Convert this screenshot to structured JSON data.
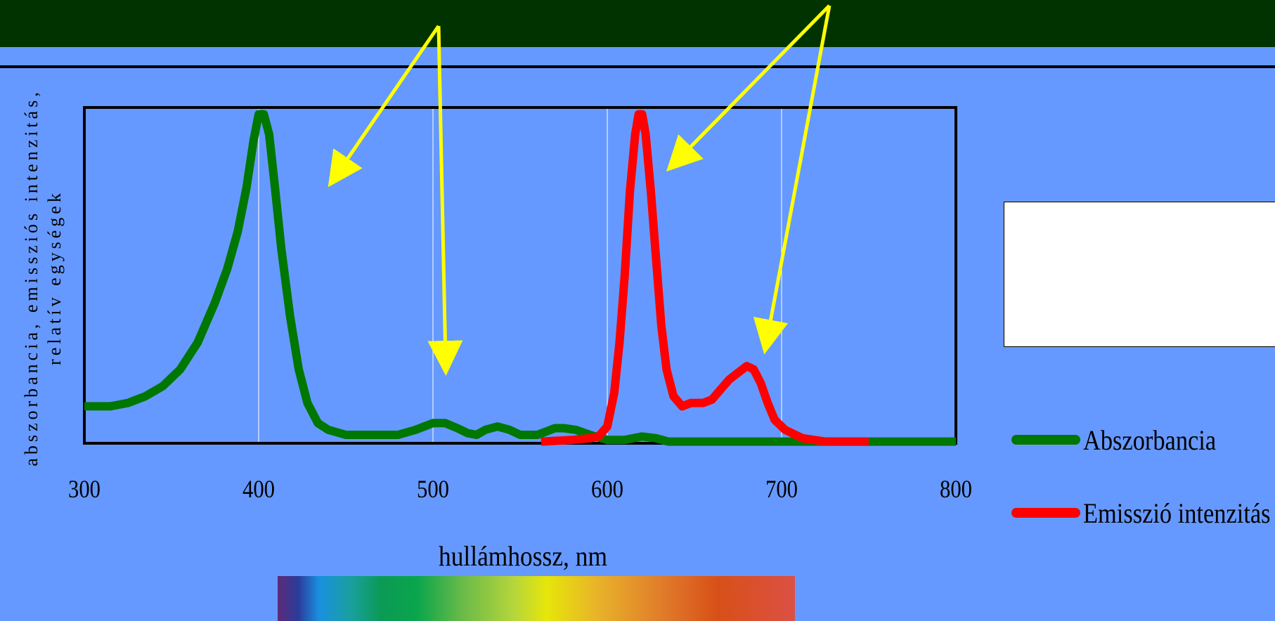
{
  "chart_data": {
    "type": "line",
    "title": "",
    "xlabel": "hullámhossz, nm",
    "ylabel_lines": [
      "abszorbancia, emissziós intenzitás,",
      "relatív egységek"
    ],
    "xlim": [
      300,
      800
    ],
    "ylim": [
      0,
      1
    ],
    "xticks": [
      "300",
      "400",
      "500",
      "600",
      "700",
      "800"
    ],
    "grid": "vertical",
    "legend_position": "right",
    "series": [
      {
        "name": "Abszorbancia",
        "color": "#007700",
        "points": [
          [
            300,
            0.11
          ],
          [
            315,
            0.11
          ],
          [
            325,
            0.12
          ],
          [
            335,
            0.14
          ],
          [
            345,
            0.17
          ],
          [
            355,
            0.22
          ],
          [
            365,
            0.3
          ],
          [
            375,
            0.42
          ],
          [
            382,
            0.52
          ],
          [
            388,
            0.63
          ],
          [
            393,
            0.76
          ],
          [
            397,
            0.9
          ],
          [
            400,
            0.98
          ],
          [
            403,
            0.98
          ],
          [
            406,
            0.92
          ],
          [
            409,
            0.78
          ],
          [
            413,
            0.58
          ],
          [
            418,
            0.38
          ],
          [
            423,
            0.22
          ],
          [
            428,
            0.12
          ],
          [
            434,
            0.06
          ],
          [
            440,
            0.04
          ],
          [
            450,
            0.025
          ],
          [
            460,
            0.025
          ],
          [
            480,
            0.025
          ],
          [
            490,
            0.04
          ],
          [
            500,
            0.06
          ],
          [
            507,
            0.06
          ],
          [
            514,
            0.045
          ],
          [
            520,
            0.03
          ],
          [
            525,
            0.025
          ],
          [
            530,
            0.04
          ],
          [
            537,
            0.05
          ],
          [
            544,
            0.04
          ],
          [
            550,
            0.025
          ],
          [
            560,
            0.025
          ],
          [
            570,
            0.045
          ],
          [
            575,
            0.045
          ],
          [
            582,
            0.04
          ],
          [
            590,
            0.025
          ],
          [
            600,
            0.01
          ],
          [
            610,
            0.01
          ],
          [
            620,
            0.02
          ],
          [
            628,
            0.015
          ],
          [
            635,
            0.005
          ],
          [
            650,
            0.005
          ],
          [
            700,
            0.005
          ],
          [
            800,
            0.005
          ]
        ]
      },
      {
        "name": "Emisszió intenzitás",
        "color": "#ff0000",
        "points": [
          [
            562,
            0.005
          ],
          [
            580,
            0.01
          ],
          [
            590,
            0.015
          ],
          [
            595,
            0.02
          ],
          [
            600,
            0.05
          ],
          [
            604,
            0.15
          ],
          [
            607,
            0.3
          ],
          [
            610,
            0.5
          ],
          [
            613,
            0.75
          ],
          [
            616,
            0.92
          ],
          [
            618,
            0.98
          ],
          [
            620,
            0.98
          ],
          [
            622,
            0.92
          ],
          [
            625,
            0.75
          ],
          [
            628,
            0.55
          ],
          [
            631,
            0.35
          ],
          [
            634,
            0.22
          ],
          [
            638,
            0.14
          ],
          [
            643,
            0.11
          ],
          [
            648,
            0.12
          ],
          [
            655,
            0.12
          ],
          [
            660,
            0.13
          ],
          [
            665,
            0.16
          ],
          [
            670,
            0.19
          ],
          [
            675,
            0.21
          ],
          [
            680,
            0.23
          ],
          [
            684,
            0.22
          ],
          [
            688,
            0.18
          ],
          [
            692,
            0.12
          ],
          [
            696,
            0.07
          ],
          [
            702,
            0.04
          ],
          [
            712,
            0.015
          ],
          [
            725,
            0.005
          ],
          [
            750,
            0.005
          ]
        ]
      }
    ]
  }
}
